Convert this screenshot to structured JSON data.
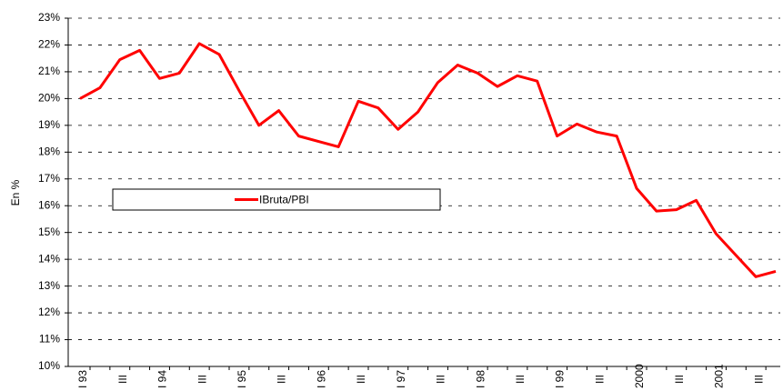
{
  "chart_data": {
    "type": "line",
    "ylabel": "En %",
    "categories": [
      "I 93",
      null,
      "III",
      null,
      "I 94",
      null,
      "III",
      null,
      "I 95",
      null,
      "III",
      null,
      "I 96",
      null,
      "III",
      null,
      "I 97",
      null,
      "III",
      null,
      "I 98",
      null,
      "III",
      null,
      "I 99",
      null,
      "III",
      null,
      "I 2000",
      null,
      "III",
      null,
      "I 2001",
      null,
      "III",
      null
    ],
    "series": [
      {
        "name": "IBruta/PBI",
        "color": "#ff0000",
        "values": [
          20.0,
          20.4,
          21.45,
          21.8,
          20.75,
          20.95,
          22.05,
          21.65,
          20.3,
          19.0,
          19.55,
          18.6,
          18.4,
          18.2,
          19.9,
          19.65,
          18.85,
          19.5,
          20.6,
          21.25,
          20.95,
          20.45,
          20.85,
          20.65,
          18.6,
          19.05,
          18.75,
          18.6,
          16.65,
          15.8,
          15.85,
          16.2,
          14.95,
          14.15,
          13.35,
          13.55
        ]
      }
    ],
    "ylim": [
      10,
      23
    ],
    "yticks": [
      {
        "value": 10,
        "label": "10%"
      },
      {
        "value": 11,
        "label": "11%"
      },
      {
        "value": 12,
        "label": "12%"
      },
      {
        "value": 13,
        "label": "13%"
      },
      {
        "value": 14,
        "label": "14%"
      },
      {
        "value": 15,
        "label": "15%"
      },
      {
        "value": 16,
        "label": "16%"
      },
      {
        "value": 17,
        "label": "17%"
      },
      {
        "value": 18,
        "label": "18%"
      },
      {
        "value": 19,
        "label": "19%"
      },
      {
        "value": 20,
        "label": "20%"
      },
      {
        "value": 21,
        "label": "21%"
      },
      {
        "value": 22,
        "label": "22%"
      },
      {
        "value": 23,
        "label": "23%"
      }
    ],
    "grid": true
  }
}
